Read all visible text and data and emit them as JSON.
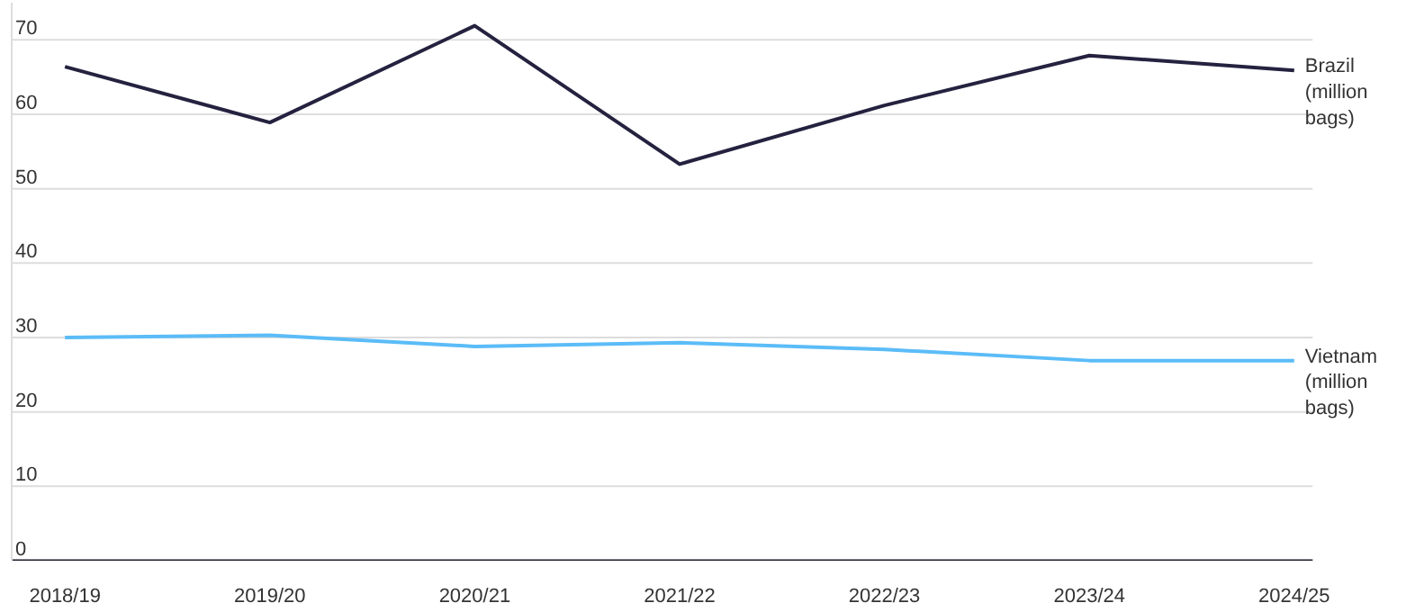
{
  "chart_data": {
    "type": "line",
    "categories": [
      "2018/19",
      "2019/20",
      "2020/21",
      "2021/22",
      "2022/23",
      "2023/24",
      "2024/25"
    ],
    "series": [
      {
        "name": "Brazil (million bags)",
        "color": "#24223f",
        "values": [
          66.4,
          58.9,
          71.9,
          53.3,
          61.2,
          67.9,
          65.9
        ]
      },
      {
        "name": "Vietnam (million bags)",
        "color": "#5bbcf7",
        "values": [
          30.0,
          30.3,
          28.8,
          29.3,
          28.4,
          26.9,
          26.9
        ]
      }
    ],
    "ylim": [
      0,
      75
    ],
    "yticks": [
      0,
      10,
      20,
      30,
      40,
      50,
      60,
      70
    ],
    "grid": "y",
    "legend": false,
    "marker": "none",
    "line_style": "solid"
  }
}
